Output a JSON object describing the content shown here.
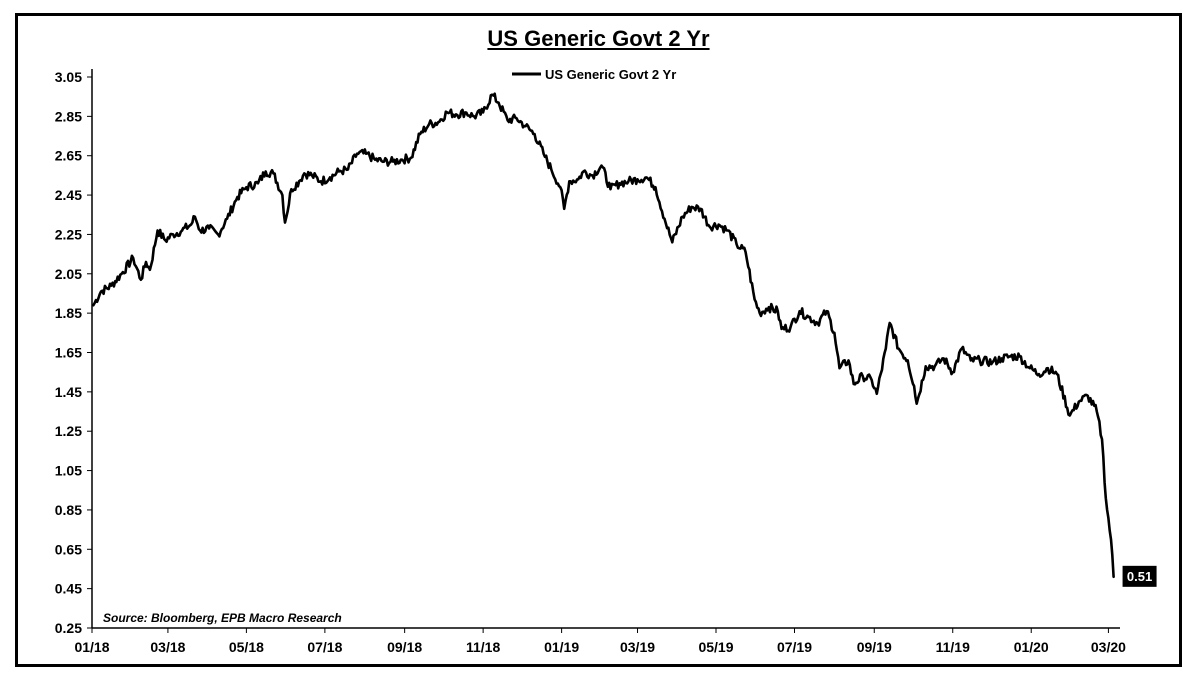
{
  "chart_data": {
    "type": "line",
    "title": "US Generic Govt 2 Yr",
    "series": [
      {
        "name": "US Generic Govt 2 Yr",
        "color": "#000000",
        "points": [
          [
            "2018-01-02",
            1.89
          ],
          [
            "2018-01-08",
            1.96
          ],
          [
            "2018-01-16",
            1.99
          ],
          [
            "2018-01-24",
            2.05
          ],
          [
            "2018-02-02",
            2.13
          ],
          [
            "2018-02-08",
            2.02
          ],
          [
            "2018-02-12",
            2.11
          ],
          [
            "2018-02-15",
            2.07
          ],
          [
            "2018-02-21",
            2.27
          ],
          [
            "2018-02-27",
            2.22
          ],
          [
            "2018-03-05",
            2.25
          ],
          [
            "2018-03-12",
            2.27
          ],
          [
            "2018-03-19",
            2.3
          ],
          [
            "2018-03-22",
            2.34
          ],
          [
            "2018-03-26",
            2.27
          ],
          [
            "2018-04-02",
            2.28
          ],
          [
            "2018-04-09",
            2.25
          ],
          [
            "2018-04-16",
            2.33
          ],
          [
            "2018-04-24",
            2.44
          ],
          [
            "2018-05-01",
            2.49
          ],
          [
            "2018-05-10",
            2.51
          ],
          [
            "2018-05-16",
            2.57
          ],
          [
            "2018-05-22",
            2.56
          ],
          [
            "2018-05-29",
            2.45
          ],
          [
            "2018-05-31",
            2.31
          ],
          [
            "2018-06-05",
            2.48
          ],
          [
            "2018-06-11",
            2.52
          ],
          [
            "2018-06-15",
            2.56
          ],
          [
            "2018-06-21",
            2.55
          ],
          [
            "2018-06-28",
            2.52
          ],
          [
            "2018-07-05",
            2.54
          ],
          [
            "2018-07-12",
            2.57
          ],
          [
            "2018-07-19",
            2.58
          ],
          [
            "2018-07-26",
            2.66
          ],
          [
            "2018-08-02",
            2.66
          ],
          [
            "2018-08-09",
            2.63
          ],
          [
            "2018-08-16",
            2.62
          ],
          [
            "2018-08-23",
            2.62
          ],
          [
            "2018-08-30",
            2.63
          ],
          [
            "2018-09-06",
            2.64
          ],
          [
            "2018-09-13",
            2.76
          ],
          [
            "2018-09-20",
            2.81
          ],
          [
            "2018-09-27",
            2.82
          ],
          [
            "2018-10-04",
            2.87
          ],
          [
            "2018-10-11",
            2.86
          ],
          [
            "2018-10-18",
            2.87
          ],
          [
            "2018-10-25",
            2.85
          ],
          [
            "2018-11-01",
            2.87
          ],
          [
            "2018-11-08",
            2.96
          ],
          [
            "2018-11-13",
            2.92
          ],
          [
            "2018-11-20",
            2.83
          ],
          [
            "2018-11-27",
            2.84
          ],
          [
            "2018-12-04",
            2.8
          ],
          [
            "2018-12-11",
            2.76
          ],
          [
            "2018-12-18",
            2.66
          ],
          [
            "2018-12-24",
            2.58
          ],
          [
            "2018-12-31",
            2.49
          ],
          [
            "2019-01-03",
            2.38
          ],
          [
            "2019-01-07",
            2.52
          ],
          [
            "2019-01-14",
            2.53
          ],
          [
            "2019-01-18",
            2.57
          ],
          [
            "2019-01-25",
            2.55
          ],
          [
            "2019-02-01",
            2.6
          ],
          [
            "2019-02-08",
            2.48
          ],
          [
            "2019-02-15",
            2.51
          ],
          [
            "2019-02-22",
            2.52
          ],
          [
            "2019-03-01",
            2.53
          ],
          [
            "2019-03-08",
            2.54
          ],
          [
            "2019-03-15",
            2.49
          ],
          [
            "2019-03-22",
            2.33
          ],
          [
            "2019-03-28",
            2.21
          ],
          [
            "2019-04-05",
            2.34
          ],
          [
            "2019-04-12",
            2.39
          ],
          [
            "2019-04-19",
            2.38
          ],
          [
            "2019-04-26",
            2.29
          ],
          [
            "2019-05-03",
            2.3
          ],
          [
            "2019-05-10",
            2.27
          ],
          [
            "2019-05-17",
            2.2
          ],
          [
            "2019-05-24",
            2.16
          ],
          [
            "2019-05-31",
            1.92
          ],
          [
            "2019-06-04",
            1.85
          ],
          [
            "2019-06-11",
            1.88
          ],
          [
            "2019-06-18",
            1.86
          ],
          [
            "2019-06-21",
            1.77
          ],
          [
            "2019-06-28",
            1.78
          ],
          [
            "2019-07-05",
            1.86
          ],
          [
            "2019-07-12",
            1.83
          ],
          [
            "2019-07-19",
            1.8
          ],
          [
            "2019-07-26",
            1.86
          ],
          [
            "2019-08-01",
            1.75
          ],
          [
            "2019-08-05",
            1.57
          ],
          [
            "2019-08-12",
            1.61
          ],
          [
            "2019-08-16",
            1.49
          ],
          [
            "2019-08-23",
            1.53
          ],
          [
            "2019-08-30",
            1.51
          ],
          [
            "2019-09-03",
            1.44
          ],
          [
            "2019-09-10",
            1.67
          ],
          [
            "2019-09-13",
            1.8
          ],
          [
            "2019-09-20",
            1.67
          ],
          [
            "2019-09-27",
            1.61
          ],
          [
            "2019-10-02",
            1.48
          ],
          [
            "2019-10-04",
            1.39
          ],
          [
            "2019-10-11",
            1.58
          ],
          [
            "2019-10-18",
            1.58
          ],
          [
            "2019-10-25",
            1.62
          ],
          [
            "2019-11-01",
            1.55
          ],
          [
            "2019-11-08",
            1.67
          ],
          [
            "2019-11-15",
            1.61
          ],
          [
            "2019-11-22",
            1.61
          ],
          [
            "2019-12-02",
            1.6
          ],
          [
            "2019-12-09",
            1.62
          ],
          [
            "2019-12-16",
            1.63
          ],
          [
            "2019-12-23",
            1.63
          ],
          [
            "2019-12-31",
            1.57
          ],
          [
            "2020-01-07",
            1.54
          ],
          [
            "2020-01-14",
            1.57
          ],
          [
            "2020-01-21",
            1.54
          ],
          [
            "2020-01-31",
            1.33
          ],
          [
            "2020-02-07",
            1.4
          ],
          [
            "2020-02-14",
            1.43
          ],
          [
            "2020-02-21",
            1.35
          ],
          [
            "2020-02-25",
            1.21
          ],
          [
            "2020-02-28",
            0.91
          ],
          [
            "2020-03-03",
            0.7
          ],
          [
            "2020-03-05",
            0.51
          ]
        ]
      }
    ],
    "x_tick_labels": [
      "01/18",
      "03/18",
      "05/18",
      "07/18",
      "09/18",
      "11/18",
      "01/19",
      "03/19",
      "05/19",
      "07/19",
      "09/19",
      "11/19",
      "01/20",
      "03/20"
    ],
    "x_ticks": [
      "2018-01-01",
      "2018-03-01",
      "2018-05-01",
      "2018-07-01",
      "2018-09-01",
      "2018-11-01",
      "2019-01-01",
      "2019-03-01",
      "2019-05-01",
      "2019-07-01",
      "2019-09-01",
      "2019-11-01",
      "2020-01-01",
      "2020-03-01"
    ],
    "xlim": [
      "2018-01-01",
      "2020-03-10"
    ],
    "y_tick_labels": [
      "0.25",
      "0.45",
      "0.65",
      "0.85",
      "1.05",
      "1.25",
      "1.45",
      "1.65",
      "1.85",
      "2.05",
      "2.25",
      "2.45",
      "2.65",
      "2.85",
      "3.05"
    ],
    "ylim": [
      0.25,
      3.05
    ],
    "grid": false,
    "legend": "top-center",
    "end_value_label": "0.51",
    "annotation": "Source: Bloomberg, EPB Macro Research"
  }
}
